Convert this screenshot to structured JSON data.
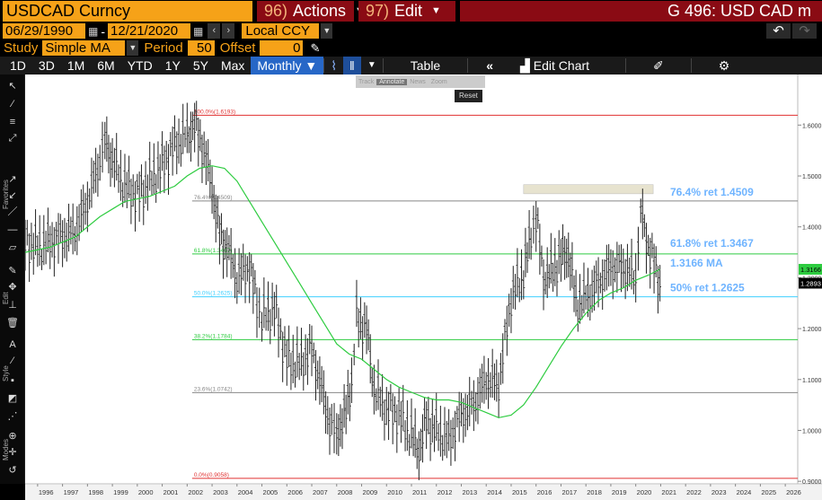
{
  "header": {
    "security": "USDCAD Curncy",
    "actions_num": "96)",
    "actions_label": "Actions",
    "edit_num": "97)",
    "edit_label": "Edit",
    "function_title": "G 496: USD CAD m"
  },
  "date_range": {
    "start": "06/29/1990",
    "separator": "-",
    "end": "12/21/2020",
    "currency": "Local CCY"
  },
  "study": {
    "label": "Study",
    "value": "Simple MA",
    "period_label": "Period",
    "period_value": "50",
    "offset_label": "Offset",
    "offset_value": "0"
  },
  "toolbar": {
    "ranges": [
      "1D",
      "3D",
      "1M",
      "6M",
      "YTD",
      "1Y",
      "5Y",
      "Max"
    ],
    "frequency": "Monthly ▼",
    "table_label": "Table",
    "edit_chart_label": "Edit Chart"
  },
  "overlay": {
    "items": [
      "Track",
      "Annotate",
      "News",
      "Zoom"
    ],
    "reset_label": "Reset"
  },
  "side_labels": {
    "favorites": "Favorites",
    "edit": "Edit",
    "style": "Style",
    "modes": "Modes"
  },
  "colors": {
    "price": "#ffffff",
    "ma": "#2ecc40",
    "fib_100": "#e03030",
    "fib_764": "#888888",
    "fib_618": "#2ecc40",
    "fib_50": "#40d0ff",
    "fib_382": "#2ecc40",
    "fib_236": "#888888",
    "fib_0": "#e03030",
    "annotation_text": "#6fb4ff"
  },
  "chart_data": {
    "type": "line",
    "series_note": "price",
    "x_ticks": [
      "1996",
      "1997",
      "1998",
      "1999",
      "2000",
      "2001",
      "2002",
      "2003",
      "2004",
      "2005",
      "2006",
      "2007",
      "2008",
      "2009",
      "2010",
      "2011",
      "2012",
      "2013",
      "2014",
      "2015",
      "2016",
      "2017",
      "2018",
      "2019",
      "2020",
      "2021",
      "2022",
      "2023",
      "2024",
      "2025",
      "2026"
    ],
    "y_ticks": [
      "1.6000",
      "1.5000",
      "1.4000",
      "1.3000",
      "1.2000",
      "1.1000",
      "1.0000",
      "0.9000"
    ],
    "ylim": [
      0.895,
      1.65
    ],
    "xlim": [
      1995.5,
      2026.5
    ],
    "series": [
      {
        "name": "USDCAD",
        "x": [
          1995.5,
          1996.0,
          1996.5,
          1997.0,
          1997.5,
          1998.0,
          1998.5,
          1998.7,
          1999.0,
          1999.5,
          2000.0,
          2000.5,
          2001.0,
          2001.5,
          2002.0,
          2002.3,
          2002.6,
          2003.0,
          2003.3,
          2003.6,
          2004.0,
          2004.5,
          2004.8,
          2005.0,
          2005.5,
          2006.0,
          2006.5,
          2007.0,
          2007.4,
          2007.8,
          2008.0,
          2008.3,
          2008.6,
          2008.8,
          2009.2,
          2009.5,
          2010.0,
          2010.5,
          2011.0,
          2011.3,
          2011.6,
          2012.0,
          2012.5,
          2013.0,
          2013.5,
          2014.0,
          2014.5,
          2015.0,
          2015.5,
          2015.8,
          2016.0,
          2016.3,
          2016.6,
          2017.0,
          2017.3,
          2017.6,
          2018.0,
          2018.5,
          2019.0,
          2019.5,
          2020.0,
          2020.2,
          2020.5,
          2020.97
        ],
        "y": [
          1.37,
          1.36,
          1.37,
          1.38,
          1.39,
          1.45,
          1.53,
          1.57,
          1.53,
          1.48,
          1.46,
          1.49,
          1.52,
          1.56,
          1.58,
          1.6,
          1.56,
          1.48,
          1.38,
          1.36,
          1.3,
          1.32,
          1.25,
          1.22,
          1.24,
          1.14,
          1.13,
          1.16,
          1.08,
          1.0,
          1.0,
          1.02,
          1.1,
          1.22,
          1.2,
          1.08,
          1.04,
          1.03,
          0.99,
          0.96,
          1.02,
          1.0,
          0.98,
          1.03,
          1.05,
          1.1,
          1.09,
          1.26,
          1.31,
          1.38,
          1.42,
          1.3,
          1.31,
          1.34,
          1.35,
          1.25,
          1.26,
          1.29,
          1.32,
          1.32,
          1.3,
          1.43,
          1.36,
          1.2893
        ]
      },
      {
        "name": "Simple MA",
        "x": [
          1995.5,
          1996.5,
          1997.5,
          1998.5,
          1999.5,
          2000.5,
          2001.5,
          2002.0,
          2002.5,
          2003.0,
          2003.5,
          2004.0,
          2004.5,
          2005.0,
          2005.5,
          2006.0,
          2006.5,
          2007.0,
          2007.5,
          2008.0,
          2008.5,
          2009.0,
          2009.5,
          2010.0,
          2010.5,
          2011.0,
          2011.5,
          2012.0,
          2012.5,
          2013.0,
          2013.5,
          2014.0,
          2014.5,
          2015.0,
          2015.5,
          2016.0,
          2016.5,
          2017.0,
          2017.5,
          2018.0,
          2018.5,
          2019.0,
          2019.5,
          2020.0,
          2020.5,
          2020.97
        ],
        "y": [
          1.35,
          1.36,
          1.38,
          1.42,
          1.45,
          1.46,
          1.48,
          1.5,
          1.515,
          1.52,
          1.515,
          1.49,
          1.45,
          1.41,
          1.37,
          1.33,
          1.29,
          1.25,
          1.21,
          1.17,
          1.15,
          1.14,
          1.12,
          1.1,
          1.085,
          1.075,
          1.065,
          1.06,
          1.06,
          1.055,
          1.045,
          1.035,
          1.025,
          1.03,
          1.05,
          1.085,
          1.125,
          1.165,
          1.2,
          1.23,
          1.255,
          1.27,
          1.28,
          1.295,
          1.305,
          1.3166
        ]
      }
    ],
    "fib_levels": [
      {
        "label": "100.0%(1.6193)",
        "value": 1.6193
      },
      {
        "label": "76.4%(1.4509)",
        "value": 1.4509
      },
      {
        "label": "61.8%(1.3467)",
        "value": 1.3467
      },
      {
        "label": "50.0%(1.2625)",
        "value": 1.2625
      },
      {
        "label": "38.2%(1.1784)",
        "value": 1.1784
      },
      {
        "label": "23.6%(1.0742)",
        "value": 1.0742
      },
      {
        "label": "0.0%(0.9058)",
        "value": 0.9058
      }
    ],
    "annotations": [
      {
        "text": "76.4% ret 1.4509",
        "value": 1.4509
      },
      {
        "text": "61.8% ret 1.3467",
        "value": 1.3467
      },
      {
        "text": "1.3166 MA",
        "value": 1.3166
      },
      {
        "text": "50% ret 1.2625",
        "value": 1.2625
      }
    ],
    "last_price_tags": [
      {
        "text": "1.3166",
        "value": 1.3166,
        "color": "#2ecc40"
      },
      {
        "text": "1.2893",
        "value": 1.2893,
        "color": "#ffffff"
      }
    ],
    "resistance_zone": {
      "x_start": 2015.5,
      "x_end": 2020.7,
      "y_low": 1.465,
      "y_high": 1.483
    }
  }
}
